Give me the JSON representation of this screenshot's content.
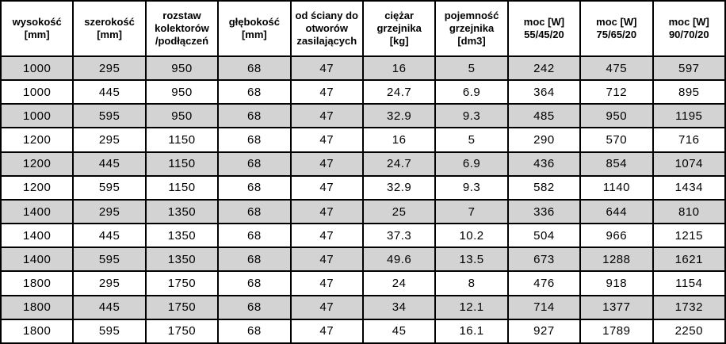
{
  "table": {
    "title": "radiator-specification-table",
    "headers": [
      "wysokość\n[mm]",
      "szerokość\n[mm]",
      "rozstaw\nkolektorów\n/podłączeń",
      "głębokość\n[mm]",
      "od ściany do\notworów\nzasilających",
      "ciężar\ngrzejnika\n[kg]",
      "pojemność\ngrzejnika\n[dm3]",
      "moc [W]\n55/45/20",
      "moc [W]\n75/65/20",
      "moc [W]\n90/70/20"
    ],
    "rows": [
      [
        "1000",
        "295",
        "950",
        "68",
        "47",
        "16",
        "5",
        "242",
        "475",
        "597"
      ],
      [
        "1000",
        "445",
        "950",
        "68",
        "47",
        "24.7",
        "6.9",
        "364",
        "712",
        "895"
      ],
      [
        "1000",
        "595",
        "950",
        "68",
        "47",
        "32.9",
        "9.3",
        "485",
        "950",
        "1195"
      ],
      [
        "1200",
        "295",
        "1150",
        "68",
        "47",
        "16",
        "5",
        "290",
        "570",
        "716"
      ],
      [
        "1200",
        "445",
        "1150",
        "68",
        "47",
        "24.7",
        "6.9",
        "436",
        "854",
        "1074"
      ],
      [
        "1200",
        "595",
        "1150",
        "68",
        "47",
        "32.9",
        "9.3",
        "582",
        "1140",
        "1434"
      ],
      [
        "1400",
        "295",
        "1350",
        "68",
        "47",
        "25",
        "7",
        "336",
        "644",
        "810"
      ],
      [
        "1400",
        "445",
        "1350",
        "68",
        "47",
        "37.3",
        "10.2",
        "504",
        "966",
        "1215"
      ],
      [
        "1400",
        "595",
        "1350",
        "68",
        "47",
        "49.6",
        "13.5",
        "673",
        "1288",
        "1621"
      ],
      [
        "1800",
        "295",
        "1750",
        "68",
        "47",
        "24",
        "8",
        "476",
        "918",
        "1154"
      ],
      [
        "1800",
        "445",
        "1750",
        "68",
        "47",
        "34",
        "12.1",
        "714",
        "1377",
        "1732"
      ],
      [
        "1800",
        "595",
        "1750",
        "68",
        "47",
        "45",
        "16.1",
        "927",
        "1789",
        "2250"
      ]
    ],
    "striping": {
      "first_data_row_shaded": true
    },
    "colors": {
      "row_alt": "#d3d3d3",
      "row_base": "#ffffff",
      "border": "#000000",
      "text": "#000000"
    }
  }
}
